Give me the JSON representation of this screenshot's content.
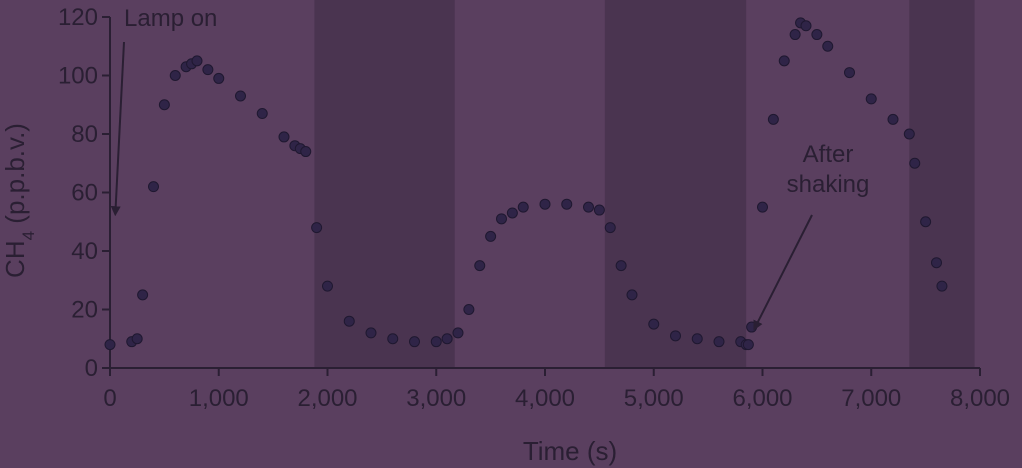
{
  "chart_data": {
    "type": "scatter",
    "xlabel": "Time (s)",
    "ylabel_main": "CH",
    "ylabel_sub": "4",
    "ylabel_rest": " (p.p.b.v.)",
    "xlim": [
      0,
      8000
    ],
    "ylim": [
      0,
      120
    ],
    "xticks": [
      0,
      1000,
      2000,
      3000,
      4000,
      5000,
      6000,
      7000,
      8000
    ],
    "xtick_labels": [
      "0",
      "1,000",
      "2,000",
      "3,000",
      "4,000",
      "5,000",
      "6,000",
      "7,000",
      "8,000"
    ],
    "yticks": [
      0,
      20,
      40,
      60,
      80,
      100,
      120
    ],
    "ytick_labels": [
      "0",
      "20",
      "40",
      "60",
      "80",
      "100",
      "120"
    ],
    "grid": false,
    "dark_periods": [
      [
        1880,
        3170
      ],
      [
        4550,
        5850
      ],
      [
        7350,
        7950
      ]
    ],
    "annotations": [
      {
        "lines": [
          "Lamp on"
        ],
        "x": 150,
        "y": 56
      },
      {
        "lines": [
          "After",
          "shaking"
        ],
        "x": 5870,
        "y": 12
      }
    ],
    "series": [
      {
        "x": [
          0,
          200,
          250,
          300,
          400,
          500,
          600,
          700,
          750,
          800,
          900,
          1000,
          1200,
          1400,
          1600,
          1700,
          1750,
          1800,
          1900,
          2000,
          2200,
          2400,
          2600,
          2800,
          3000,
          3100,
          3200,
          3300,
          3400,
          3500,
          3600,
          3700,
          3800,
          4000,
          4200,
          4400,
          4500,
          4600,
          4700,
          4800,
          5000,
          5200,
          5400,
          5600,
          5800,
          5850,
          5870,
          5900,
          6000,
          6100,
          6200,
          6300,
          6350,
          6400,
          6500,
          6600,
          6800,
          7000,
          7200,
          7350,
          7400,
          7500,
          7600,
          7650
        ],
        "y": [
          8,
          9,
          10,
          25,
          62,
          90,
          100,
          103,
          104,
          105,
          102,
          99,
          93,
          87,
          79,
          76,
          75,
          74,
          48,
          28,
          16,
          12,
          10,
          9,
          9,
          10,
          12,
          20,
          35,
          45,
          51,
          53,
          55,
          56,
          56,
          55,
          54,
          48,
          35,
          25,
          15,
          11,
          10,
          9,
          9,
          8,
          8,
          14,
          55,
          85,
          105,
          114,
          118,
          117,
          114,
          110,
          101,
          92,
          85,
          80,
          70,
          50,
          36,
          28
        ]
      }
    ]
  }
}
